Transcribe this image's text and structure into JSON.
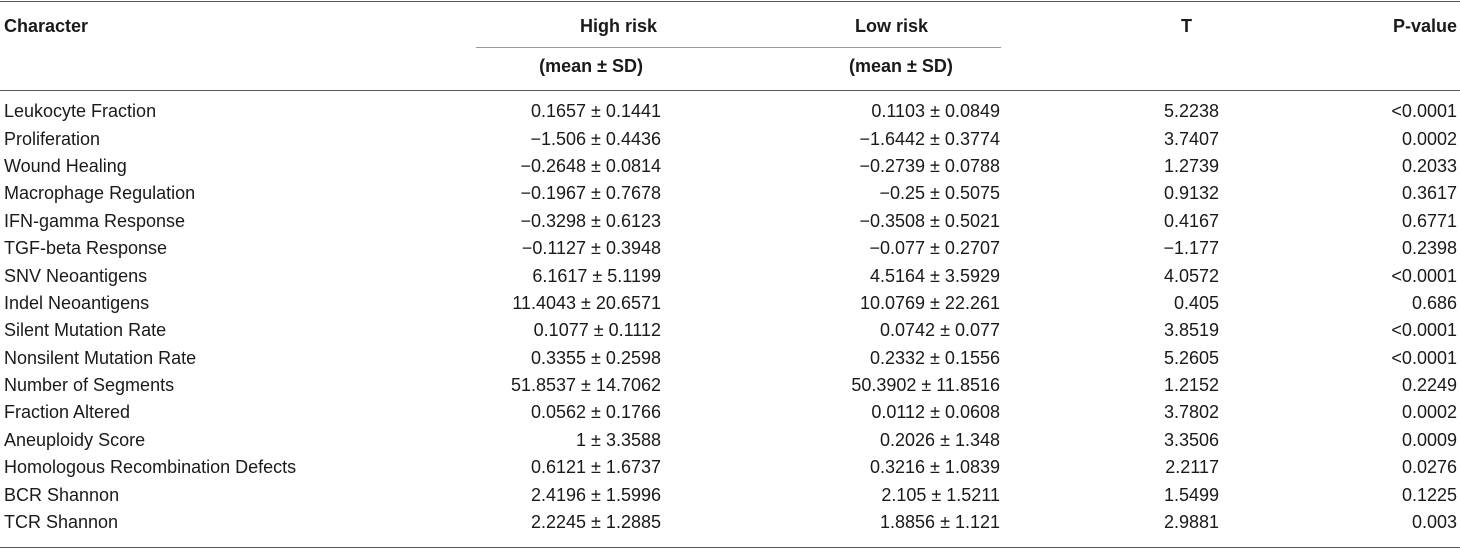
{
  "table": {
    "headers": {
      "character": "Character",
      "high_risk": "High risk",
      "low_risk": "Low risk",
      "t": "T",
      "p_value": "P-value",
      "high_sub": "(mean ± SD)",
      "low_sub": "(mean ± SD)"
    },
    "rows": [
      {
        "character": "Leukocyte Fraction",
        "high": "0.1657 ± 0.1441",
        "low": "0.1103 ± 0.0849",
        "t": "5.2238",
        "p": "<0.0001"
      },
      {
        "character": "Proliferation",
        "high": "−1.506 ± 0.4436",
        "low": "−1.6442 ± 0.3774",
        "t": "3.7407",
        "p": "0.0002"
      },
      {
        "character": "Wound Healing",
        "high": "−0.2648 ± 0.0814",
        "low": "−0.2739 ± 0.0788",
        "t": "1.2739",
        "p": "0.2033"
      },
      {
        "character": "Macrophage Regulation",
        "high": "−0.1967 ± 0.7678",
        "low": "−0.25 ± 0.5075",
        "t": "0.9132",
        "p": "0.3617"
      },
      {
        "character": "IFN-gamma Response",
        "high": "−0.3298 ± 0.6123",
        "low": "−0.3508 ± 0.5021",
        "t": "0.4167",
        "p": "0.6771"
      },
      {
        "character": "TGF-beta Response",
        "high": "−0.1127 ± 0.3948",
        "low": "−0.077 ± 0.2707",
        "t": "−1.177",
        "p": "0.2398"
      },
      {
        "character": "SNV Neoantigens",
        "high": "6.1617 ± 5.1199",
        "low": "4.5164 ± 3.5929",
        "t": "4.0572",
        "p": "<0.0001"
      },
      {
        "character": "Indel Neoantigens",
        "high": "11.4043 ± 20.6571",
        "low": "10.0769 ± 22.261",
        "t": "0.405",
        "p": "0.686"
      },
      {
        "character": "Silent Mutation Rate",
        "high": "0.1077 ± 0.1112",
        "low": "0.0742 ± 0.077",
        "t": "3.8519",
        "p": "<0.0001"
      },
      {
        "character": "Nonsilent Mutation Rate",
        "high": "0.3355 ± 0.2598",
        "low": "0.2332 ± 0.1556",
        "t": "5.2605",
        "p": "<0.0001"
      },
      {
        "character": "Number of Segments",
        "high": "51.8537 ± 14.7062",
        "low": "50.3902 ± 11.8516",
        "t": "1.2152",
        "p": "0.2249"
      },
      {
        "character": "Fraction Altered",
        "high": "0.0562 ± 0.1766",
        "low": "0.0112 ± 0.0608",
        "t": "3.7802",
        "p": "0.0002"
      },
      {
        "character": "Aneuploidy Score",
        "high": "1 ± 3.3588",
        "low": "0.2026 ± 1.348",
        "t": "3.3506",
        "p": "0.0009"
      },
      {
        "character": "Homologous Recombination Defects",
        "high": "0.6121 ± 1.6737",
        "low": "0.3216 ± 1.0839",
        "t": "2.2117",
        "p": "0.0276"
      },
      {
        "character": "BCR Shannon",
        "high": "2.4196 ± 1.5996",
        "low": "2.105 ± 1.5211",
        "t": "1.5499",
        "p": "0.1225"
      },
      {
        "character": "TCR Shannon",
        "high": "2.2245 ± 1.2885",
        "low": "1.8856 ± 1.121",
        "t": "2.9881",
        "p": "0.003"
      }
    ]
  }
}
